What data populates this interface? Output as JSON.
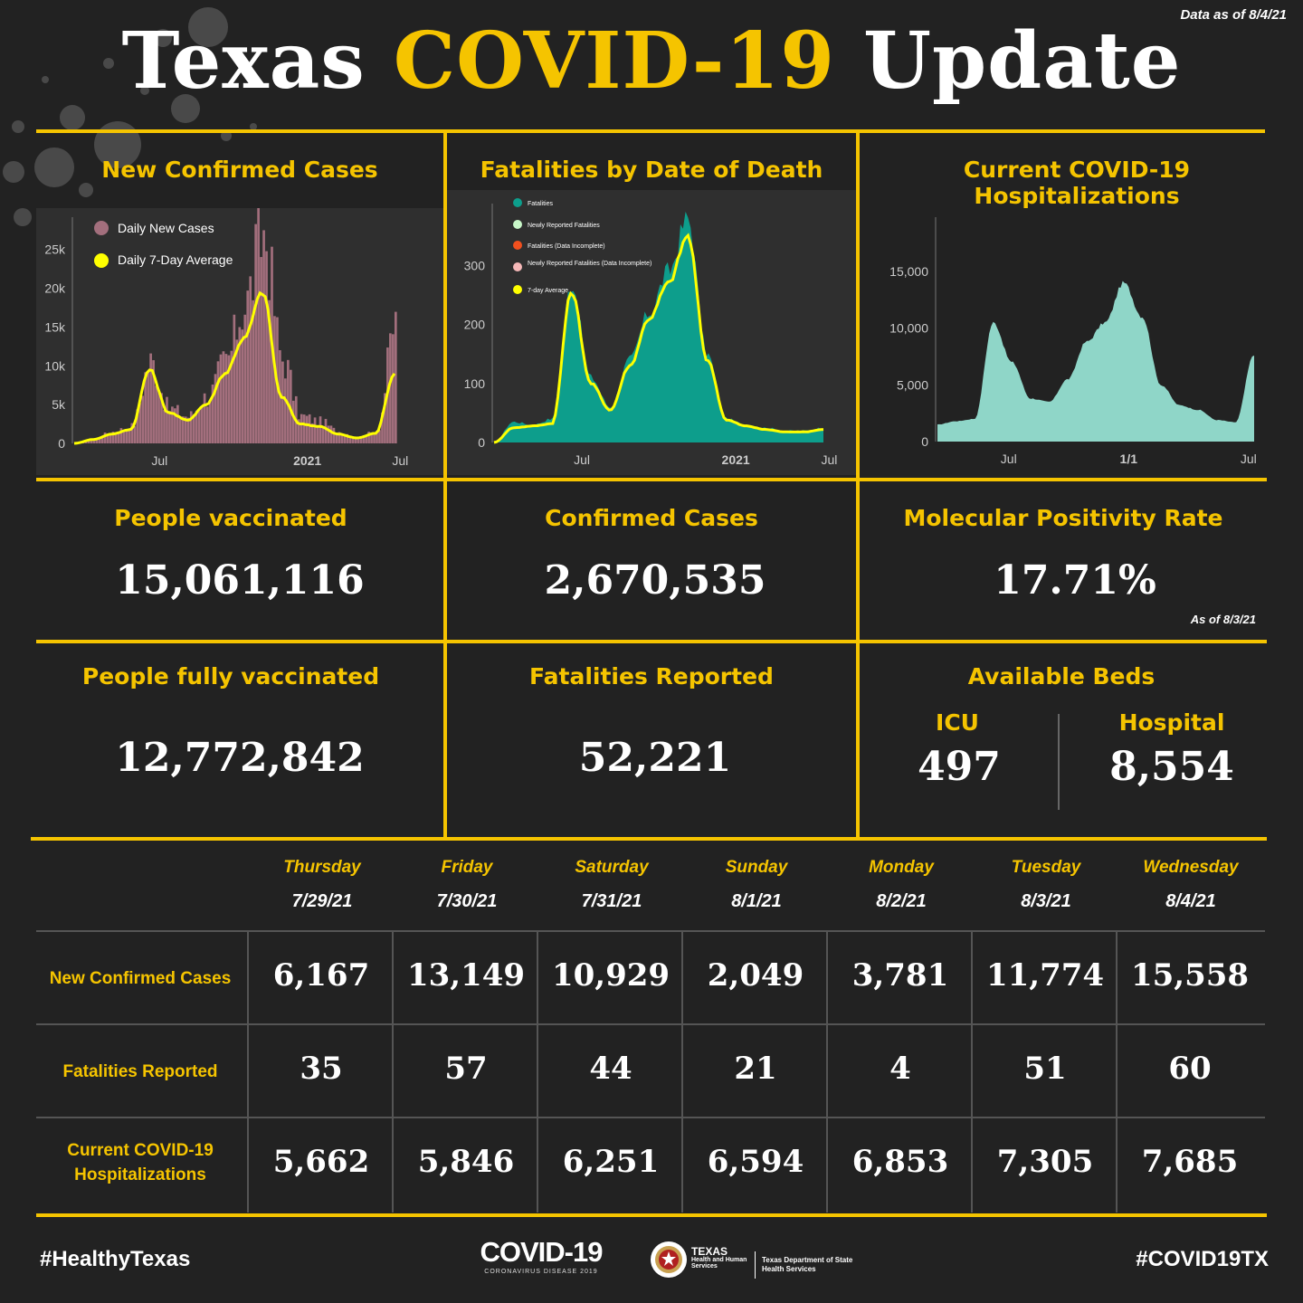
{
  "as_of": "Data as of 8/4/21",
  "title": {
    "part1": "Texas",
    "part2": "COVID-19",
    "part3": "Update"
  },
  "panels": {
    "cases_chart_title": "New Confirmed Cases",
    "fatalities_chart_title": "Fatalities by Date of Death",
    "hosp_chart_title": "Current COVID-19 Hospitalizations"
  },
  "stats": {
    "vaccinated": {
      "label": "People vaccinated",
      "value": "15,061,116"
    },
    "confirmed": {
      "label": "Confirmed Cases",
      "value": "2,670,535"
    },
    "positivity": {
      "label": "Molecular Positivity Rate",
      "value": "17.71%",
      "note": "As of 8/3/21"
    },
    "fully_vaccinated": {
      "label": "People fully vaccinated",
      "value": "12,772,842"
    },
    "fatalities": {
      "label": "Fatalities Reported",
      "value": "52,221"
    },
    "beds": {
      "label": "Available Beds",
      "icu_label": "ICU",
      "icu_value": "497",
      "hospital_label": "Hospital",
      "hospital_value": "8,554"
    }
  },
  "table": {
    "days": [
      {
        "day": "Thursday",
        "date": "7/29/21"
      },
      {
        "day": "Friday",
        "date": "7/30/21"
      },
      {
        "day": "Saturday",
        "date": "7/31/21"
      },
      {
        "day": "Sunday",
        "date": "8/1/21"
      },
      {
        "day": "Monday",
        "date": "8/2/21"
      },
      {
        "day": "Tuesday",
        "date": "8/3/21"
      },
      {
        "day": "Wednesday",
        "date": "8/4/21"
      }
    ],
    "rows": [
      {
        "label": "New Confirmed Cases",
        "values": [
          "6,167",
          "13,149",
          "10,929",
          "2,049",
          "3,781",
          "11,774",
          "15,558"
        ]
      },
      {
        "label": "Fatalities Reported",
        "values": [
          "35",
          "57",
          "44",
          "21",
          "4",
          "51",
          "60"
        ]
      },
      {
        "label": "Current COVID-19 Hospitalizations",
        "values": [
          "5,662",
          "5,846",
          "6,251",
          "6,594",
          "6,853",
          "7,305",
          "7,685"
        ]
      }
    ]
  },
  "footer": {
    "left": "#HealthyTexas",
    "right": "#COVID19TX",
    "logo_main": "COVID-19",
    "logo_sub": "CORONAVIRUS DISEASE 2019",
    "agency1_title": "TEXAS",
    "agency1_sub1": "Health and Human",
    "agency1_sub2": "Services",
    "agency2_line1": "Texas Department of State",
    "agency2_line2": "Health Services"
  },
  "chart_data": [
    {
      "type": "area",
      "title": "New Confirmed Cases",
      "x_ticks": [
        "Jul",
        "2021",
        "Jul"
      ],
      "y_ticks": [
        "0",
        "5k",
        "10k",
        "15k",
        "20k",
        "25k"
      ],
      "ylim": [
        0,
        28000
      ],
      "legend": [
        "Daily New Cases",
        "Daily 7-Day Average"
      ],
      "x_months": [
        0,
        1,
        2,
        3,
        4,
        5,
        6,
        7,
        8,
        9,
        10,
        11,
        12,
        13,
        14,
        15,
        16,
        17
      ],
      "series": [
        {
          "name": "Daily New Cases",
          "values": [
            0,
            600,
            1500,
            2200,
            10500,
            4500,
            3500,
            6000,
            10500,
            18000,
            27000,
            11000,
            3500,
            2800,
            1500,
            800,
            1500,
            15500
          ]
        },
        {
          "name": "Daily 7-Day Average",
          "values": [
            0,
            500,
            1200,
            1800,
            9500,
            4000,
            3000,
            5000,
            9000,
            13500,
            19500,
            6000,
            2500,
            2200,
            1200,
            700,
            1300,
            9000
          ]
        }
      ]
    },
    {
      "type": "area",
      "title": "Fatalities by Date of Death",
      "x_ticks": [
        "Jul",
        "2021",
        "Jul"
      ],
      "y_ticks": [
        "0",
        "100",
        "200",
        "300"
      ],
      "ylim": [
        0,
        390
      ],
      "legend": [
        "Fatalities",
        "Newly Reported Fatalities",
        "Fatalities (Data Incomplete)",
        "Newly Reported Fatalities (Data Incomplete)",
        "7-day Average"
      ],
      "x_months": [
        0,
        1,
        2,
        3,
        4,
        5,
        6,
        7,
        8,
        9,
        10,
        11,
        12,
        13,
        14,
        15,
        16,
        17
      ],
      "series": [
        {
          "name": "Fatalities",
          "values": [
            0,
            35,
            30,
            40,
            270,
            110,
            60,
            140,
            220,
            290,
            380,
            150,
            40,
            30,
            25,
            20,
            20,
            25
          ]
        },
        {
          "name": "7-day Average",
          "values": [
            0,
            25,
            28,
            32,
            255,
            100,
            55,
            130,
            210,
            270,
            350,
            140,
            38,
            28,
            22,
            18,
            18,
            22
          ]
        }
      ]
    },
    {
      "type": "area",
      "title": "Current COVID-19 Hospitalizations",
      "x_ticks": [
        "Jul",
        "1/1",
        "Jul"
      ],
      "y_ticks": [
        "0",
        "5,000",
        "10,000",
        "15,000"
      ],
      "ylim": [
        0,
        19000
      ],
      "x_months": [
        0,
        1,
        2,
        3,
        4,
        5,
        6,
        7,
        8,
        9,
        10,
        11,
        12,
        13,
        14,
        15,
        16,
        17
      ],
      "series": [
        {
          "name": "Hospitalizations",
          "values": [
            1500,
            1800,
            2000,
            10500,
            7000,
            3800,
            3500,
            5500,
            8800,
            10500,
            14000,
            11000,
            5000,
            3200,
            2800,
            1900,
            1700,
            7700
          ]
        }
      ]
    }
  ]
}
